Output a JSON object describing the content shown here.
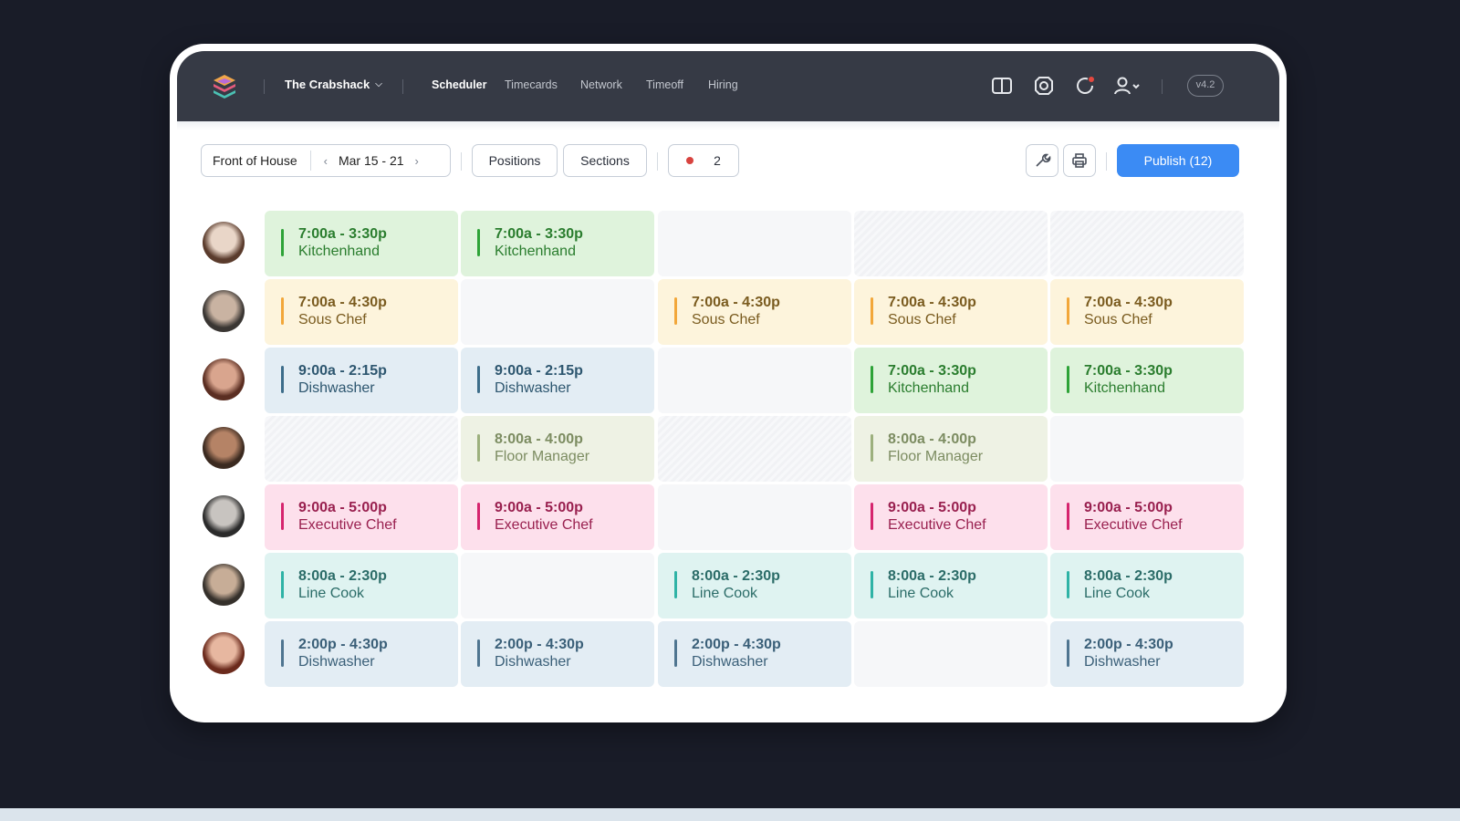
{
  "header": {
    "company": "The Crabshack",
    "nav": [
      "Scheduler",
      "Timecards",
      "Network",
      "Timeoff",
      "Hiring"
    ],
    "active_nav": "Scheduler",
    "icons": [
      "book-icon",
      "tag-icon",
      "notification-refresh-icon",
      "user-menu-icon"
    ],
    "version": "v4.2"
  },
  "toolbar": {
    "location": "Front of House",
    "date_range": "Mar 15 - 21",
    "positions_label": "Positions",
    "sections_label": "Sections",
    "alert_count": "2",
    "publish_label": "Publish (12)"
  },
  "colors": {
    "green": {
      "bg": "#dff3dc",
      "bar": "#2ea338",
      "text": "#2a7d2e"
    },
    "yellow": {
      "bg": "#fdf4dc",
      "bar": "#f2a73a",
      "text": "#7a5b1f"
    },
    "blue": {
      "bg": "#e3edf4",
      "bar": "#3d6d8a",
      "text": "#2d566f"
    },
    "olive": {
      "bg": "#eef2e4",
      "bar": "#9cb07d",
      "text": "#7c8c61"
    },
    "pink": {
      "bg": "#fde0ec",
      "bar": "#d6246e",
      "text": "#99204f"
    },
    "teal": {
      "bg": "#dff3f1",
      "bar": "#2fb3a6",
      "text": "#2b6c68"
    },
    "slate": {
      "bg": "#e3edf4",
      "bar": "#4f7590",
      "text": "#3a5f78"
    }
  },
  "schedule": [
    {
      "employee": "employee-1",
      "shifts": [
        {
          "time": "7:00a - 3:30p",
          "role": "Kitchenhand",
          "color": "green"
        },
        {
          "time": "7:00a - 3:30p",
          "role": "Kitchenhand",
          "color": "green"
        },
        {
          "empty": "plain"
        },
        {
          "empty": "hatched"
        },
        {
          "empty": "hatched"
        }
      ]
    },
    {
      "employee": "employee-2",
      "shifts": [
        {
          "time": "7:00a - 4:30p",
          "role": "Sous Chef",
          "color": "yellow"
        },
        {
          "empty": "plain"
        },
        {
          "time": "7:00a - 4:30p",
          "role": "Sous Chef",
          "color": "yellow"
        },
        {
          "time": "7:00a - 4:30p",
          "role": "Sous Chef",
          "color": "yellow"
        },
        {
          "time": "7:00a - 4:30p",
          "role": "Sous Chef",
          "color": "yellow"
        }
      ]
    },
    {
      "employee": "employee-3",
      "shifts": [
        {
          "time": "9:00a - 2:15p",
          "role": "Dishwasher",
          "color": "blue"
        },
        {
          "time": "9:00a - 2:15p",
          "role": "Dishwasher",
          "color": "blue"
        },
        {
          "empty": "plain"
        },
        {
          "time": "7:00a - 3:30p",
          "role": "Kitchenhand",
          "color": "green"
        },
        {
          "time": "7:00a - 3:30p",
          "role": "Kitchenhand",
          "color": "green"
        }
      ]
    },
    {
      "employee": "employee-4",
      "shifts": [
        {
          "empty": "hatched"
        },
        {
          "time": "8:00a - 4:00p",
          "role": "Floor Manager",
          "color": "olive"
        },
        {
          "empty": "hatched"
        },
        {
          "time": "8:00a - 4:00p",
          "role": "Floor Manager",
          "color": "olive"
        },
        {
          "empty": "plain"
        }
      ]
    },
    {
      "employee": "employee-5",
      "shifts": [
        {
          "time": "9:00a - 5:00p",
          "role": "Executive Chef",
          "color": "pink"
        },
        {
          "time": "9:00a - 5:00p",
          "role": "Executive Chef",
          "color": "pink"
        },
        {
          "empty": "plain"
        },
        {
          "time": "9:00a - 5:00p",
          "role": "Executive Chef",
          "color": "pink"
        },
        {
          "time": "9:00a - 5:00p",
          "role": "Executive Chef",
          "color": "pink"
        }
      ]
    },
    {
      "employee": "employee-6",
      "shifts": [
        {
          "time": "8:00a - 2:30p",
          "role": "Line Cook",
          "color": "teal"
        },
        {
          "empty": "plain"
        },
        {
          "time": "8:00a - 2:30p",
          "role": "Line Cook",
          "color": "teal"
        },
        {
          "time": "8:00a - 2:30p",
          "role": "Line Cook",
          "color": "teal"
        },
        {
          "time": "8:00a - 2:30p",
          "role": "Line Cook",
          "color": "teal"
        }
      ]
    },
    {
      "employee": "employee-7",
      "shifts": [
        {
          "time": "2:00p - 4:30p",
          "role": "Dishwasher",
          "color": "slate"
        },
        {
          "time": "2:00p - 4:30p",
          "role": "Dishwasher",
          "color": "slate"
        },
        {
          "time": "2:00p - 4:30p",
          "role": "Dishwasher",
          "color": "slate"
        },
        {
          "empty": "plain"
        },
        {
          "time": "2:00p - 4:30p",
          "role": "Dishwasher",
          "color": "slate"
        }
      ]
    }
  ]
}
